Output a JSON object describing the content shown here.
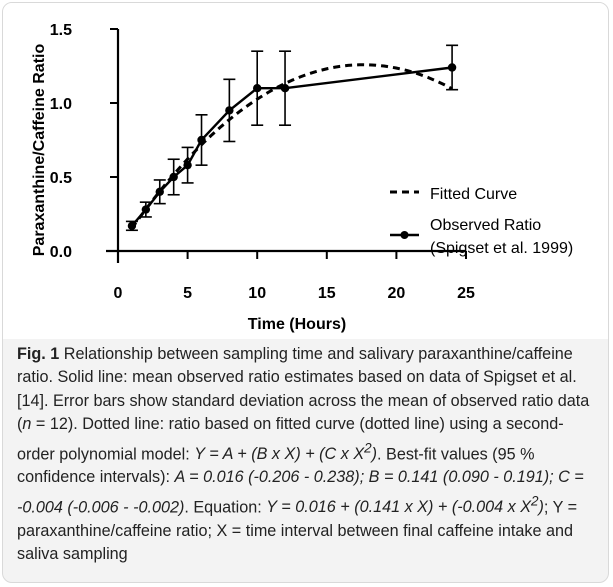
{
  "chart_data": {
    "type": "line",
    "xlabel": "Time (Hours)",
    "ylabel": "Paraxanthine/Caffeine Ratio",
    "xlim": [
      0,
      25
    ],
    "ylim": [
      0,
      1.5
    ],
    "x_ticks": [
      "0",
      "5",
      "10",
      "15",
      "20",
      "25"
    ],
    "x_tick_values": [
      0,
      5,
      10,
      15,
      20,
      25
    ],
    "y_ticks": [
      "0.0",
      "0.5",
      "1.0",
      "1.5"
    ],
    "y_tick_values": [
      0,
      0.5,
      1.0,
      1.5
    ],
    "legend_position": "right",
    "series": [
      {
        "name": "Fitted Curve",
        "style": "dashed",
        "model": {
          "A": 0.016,
          "B": 0.141,
          "C": -0.004
        },
        "x_range": [
          1,
          24
        ]
      },
      {
        "name_lines": [
          "Observed Ratio",
          "(Spigset et al. 1999)"
        ],
        "style": "solid-markers",
        "x": [
          1,
          2,
          3,
          4,
          5,
          6,
          8,
          10,
          12,
          24
        ],
        "y": [
          0.17,
          0.28,
          0.4,
          0.5,
          0.58,
          0.75,
          0.95,
          1.1,
          1.1,
          1.24
        ],
        "sd": [
          0.03,
          0.05,
          0.08,
          0.12,
          0.12,
          0.17,
          0.21,
          0.25,
          0.25,
          0.15
        ]
      }
    ]
  },
  "caption": {
    "label": "Fig. 1",
    "t1": " Relationship between sampling time and salivary paraxanthine/caffeine ratio. Solid line: mean observed ratio estimates based on data of Spigset et al. [14]. Error bars show standard deviation across the mean of observed ratio data (",
    "n_var": "n",
    "t2": " = 12). Dotted line: ratio based on fitted curve (dotted line) using a second-order polynomial model: ",
    "eq_model": "Y = A + (B x X) + (C x X",
    "sup": "2",
    "close_paren": ")",
    "t3": ". Best-fit values (95 % confidence intervals): ",
    "best_fit": "A = 0.016 (-0.206 - 0.238); B = 0.141 (0.090 - 0.191); C = -0.004 (-0.006 - -0.002)",
    "t4": ". Equation: ",
    "eq_final": "Y = 0.016 + (0.141 x X) + (-0.004 x X",
    "sup2": "2",
    "close_paren2": ")",
    "t5": "; Y = paraxanthine/caffeine ratio; X = time interval between final caffeine intake and saliva sampling"
  }
}
